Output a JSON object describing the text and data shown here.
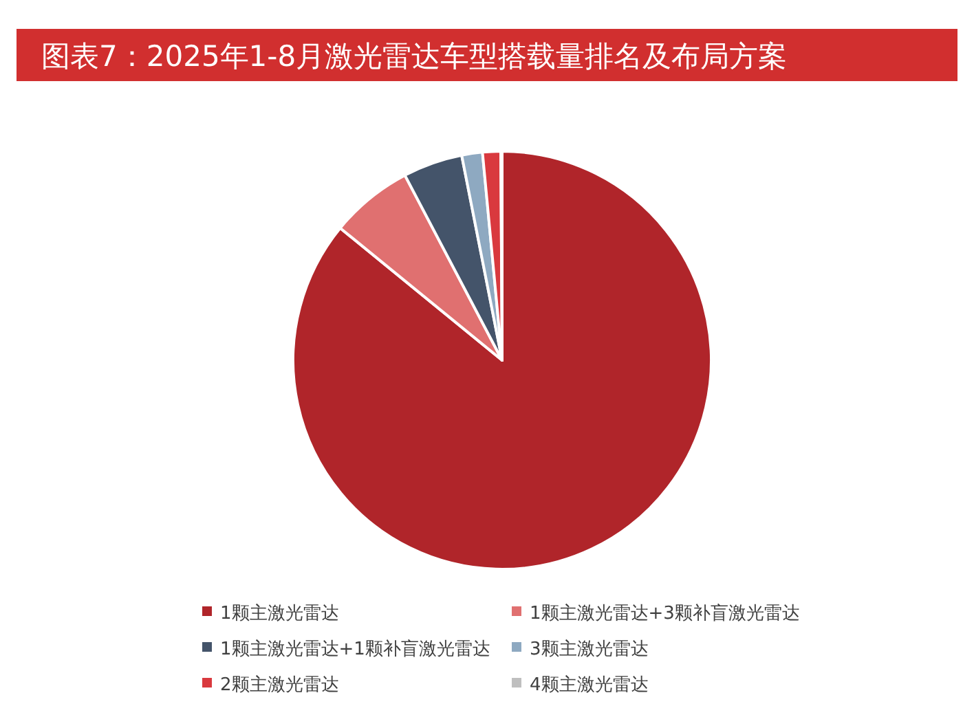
{
  "chart_data": {
    "type": "pie",
    "title": "图表7：2025年1-8月激光雷达车型搭载量排名及布局方案",
    "categories": [
      "1颗主激光雷达",
      "1颗主激光雷达+3颗补盲激光雷达",
      "1颗主激光雷达+1颗补盲激光雷达",
      "3颗主激光雷达",
      "2颗主激光雷达",
      "4颗主激光雷达"
    ],
    "values": [
      85.9,
      6.4,
      4.6,
      1.6,
      1.4,
      0.1
    ],
    "colors": [
      "#b0252a",
      "#e07070",
      "#44546a",
      "#8ea9c1",
      "#d9393e",
      "#bfbfbf"
    ],
    "legend": "bottom"
  }
}
